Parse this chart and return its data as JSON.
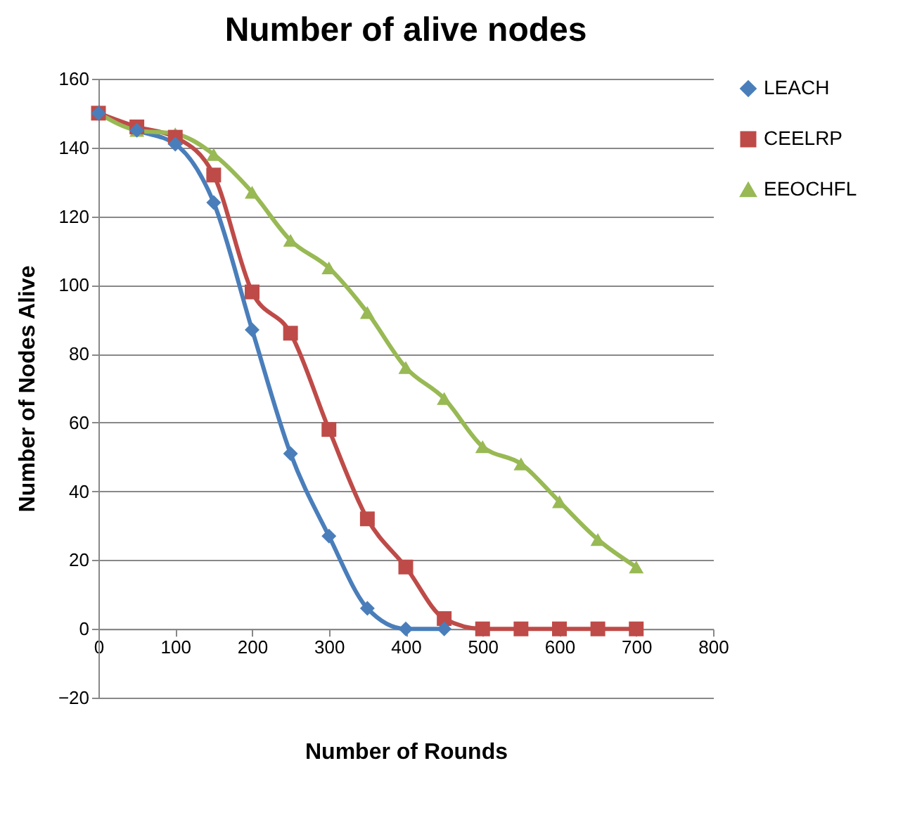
{
  "chart_data": {
    "type": "line",
    "title": "Number of alive nodes",
    "xlabel": "Number of Rounds",
    "ylabel": "Number of Nodes Alive",
    "x": [
      0,
      50,
      100,
      150,
      200,
      250,
      300,
      350,
      400,
      450,
      500,
      550,
      600,
      650,
      700
    ],
    "series": [
      {
        "name": "LEACH",
        "color": "#4a7ebb",
        "marker": "diamond",
        "values": [
          150,
          145,
          141,
          124,
          87,
          51,
          27,
          6,
          0,
          0,
          null,
          null,
          null,
          null,
          null
        ]
      },
      {
        "name": "CEELRP",
        "color": "#be4b48",
        "marker": "square",
        "values": [
          150,
          146,
          143,
          132,
          98,
          86,
          58,
          32,
          18,
          3,
          0,
          0,
          0,
          0,
          0
        ]
      },
      {
        "name": "EEOCHFL",
        "color": "#98b954",
        "marker": "triangle",
        "values": [
          150,
          145,
          144,
          138,
          127,
          113,
          105,
          92,
          76,
          67,
          53,
          48,
          37,
          26,
          18
        ]
      }
    ],
    "xlim": [
      0,
      800
    ],
    "xticks": [
      0,
      100,
      200,
      300,
      400,
      500,
      600,
      700,
      800
    ],
    "ylim": [
      -20,
      160
    ],
    "yticks": [
      -20,
      0,
      20,
      40,
      60,
      80,
      100,
      120,
      140,
      160
    ],
    "grid": "y",
    "legend": "right",
    "line_style": "solid"
  }
}
